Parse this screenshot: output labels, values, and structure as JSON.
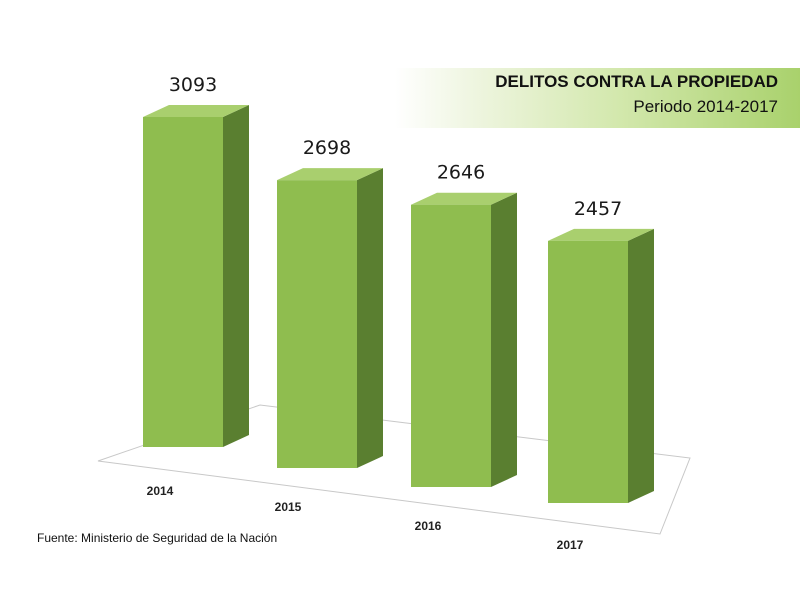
{
  "header": {
    "title": "DELITOS CONTRA LA PROPIEDAD",
    "subtitle": "Periodo 2014-2017"
  },
  "footer": {
    "source": "Fuente: Ministerio de Seguridad de la Nación"
  },
  "colors": {
    "bar_front": "#8fbd4f",
    "bar_side": "#5a7f30",
    "bar_top": "#a9cf6e",
    "floor_line": "#c8c8c8"
  },
  "chart_data": {
    "type": "bar",
    "style": "3d-column",
    "categories": [
      "2014",
      "2015",
      "2016",
      "2017"
    ],
    "values": [
      3093,
      2698,
      2646,
      2457
    ],
    "data_labels": [
      "3093",
      "2698",
      "2646",
      "2457"
    ],
    "title": "DELITOS CONTRA LA PROPIEDAD",
    "subtitle": "Periodo 2014-2017",
    "xlabel": "",
    "ylabel": "",
    "ylim": [
      0,
      3093
    ],
    "grid": false,
    "legend": "none"
  }
}
